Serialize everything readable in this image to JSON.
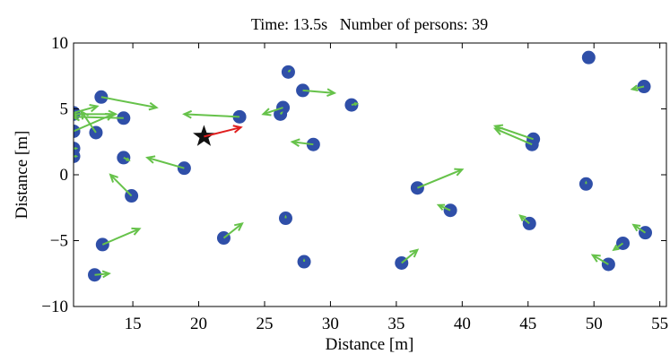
{
  "chart_data": {
    "type": "scatter",
    "title": "Time: 13.5s   Number of persons: 39",
    "xlabel": "Distance [m]",
    "ylabel": "Distance [m]",
    "xlim": [
      10.5,
      55.5
    ],
    "ylim": [
      -10,
      10
    ],
    "xticks": [
      15,
      20,
      25,
      30,
      35,
      40,
      45,
      50,
      55
    ],
    "yticks": [
      10,
      5,
      0,
      -5,
      -10
    ],
    "grid": false,
    "colors": {
      "person": "#2f4fa8",
      "velocity": "#66c24a",
      "robot": "#111111",
      "robot_velocity": "#e01e1e"
    },
    "robot": {
      "x": 20.4,
      "y": 2.9,
      "vx": 2.8,
      "vy": 0.7
    },
    "persons": [
      {
        "x": 10.5,
        "y": 4.7,
        "vx": 1.8,
        "vy": 0.5
      },
      {
        "x": 10.5,
        "y": 4.6,
        "vx": 3.2,
        "vy": 0.0
      },
      {
        "x": 10.5,
        "y": 3.3,
        "vx": 3.0,
        "vy": 1.3
      },
      {
        "x": 10.5,
        "y": 2.0,
        "vx": 0.2,
        "vy": 0.0
      },
      {
        "x": 10.5,
        "y": 1.4,
        "vx": 0.2,
        "vy": 0.0
      },
      {
        "x": 12.6,
        "y": 5.9,
        "vx": 4.2,
        "vy": -0.8
      },
      {
        "x": 14.3,
        "y": 4.3,
        "vx": -3.9,
        "vy": 0.1
      },
      {
        "x": 12.2,
        "y": 3.2,
        "vx": -1.1,
        "vy": 1.6
      },
      {
        "x": 14.3,
        "y": 1.3,
        "vx": 0.4,
        "vy": -0.2
      },
      {
        "x": 14.9,
        "y": -1.6,
        "vx": -1.6,
        "vy": 1.6
      },
      {
        "x": 18.9,
        "y": 0.5,
        "vx": -2.8,
        "vy": 0.8
      },
      {
        "x": 12.7,
        "y": -5.3,
        "vx": 2.8,
        "vy": 1.2
      },
      {
        "x": 12.1,
        "y": -7.6,
        "vx": 1.1,
        "vy": 0.1
      },
      {
        "x": 23.1,
        "y": 4.4,
        "vx": -4.2,
        "vy": 0.2
      },
      {
        "x": 26.8,
        "y": 7.8,
        "vx": 0.1,
        "vy": 0.1
      },
      {
        "x": 27.9,
        "y": 6.4,
        "vx": 2.4,
        "vy": -0.2
      },
      {
        "x": 26.4,
        "y": 5.1,
        "vx": -1.5,
        "vy": -0.5
      },
      {
        "x": 26.2,
        "y": 4.6,
        "vx": 0.1,
        "vy": 0.1
      },
      {
        "x": 28.7,
        "y": 2.3,
        "vx": -1.6,
        "vy": 0.2
      },
      {
        "x": 31.6,
        "y": 5.3,
        "vx": 0.4,
        "vy": 0.1
      },
      {
        "x": 21.9,
        "y": -4.8,
        "vx": 1.4,
        "vy": 1.1
      },
      {
        "x": 26.6,
        "y": -3.3,
        "vx": 0.0,
        "vy": 0.1
      },
      {
        "x": 28.0,
        "y": -6.6,
        "vx": 0.0,
        "vy": 0.1
      },
      {
        "x": 35.4,
        "y": -6.7,
        "vx": 1.2,
        "vy": 1.0
      },
      {
        "x": 36.6,
        "y": -1.0,
        "vx": 3.4,
        "vy": 1.4
      },
      {
        "x": 39.1,
        "y": -2.7,
        "vx": -0.9,
        "vy": 0.4
      },
      {
        "x": 45.4,
        "y": 2.7,
        "vx": -2.9,
        "vy": 1.0
      },
      {
        "x": 45.3,
        "y": 2.3,
        "vx": -2.8,
        "vy": 1.2
      },
      {
        "x": 45.1,
        "y": -3.7,
        "vx": -0.7,
        "vy": 0.6
      },
      {
        "x": 49.6,
        "y": 8.9,
        "vx": 0.0,
        "vy": 0.0
      },
      {
        "x": 53.8,
        "y": 6.7,
        "vx": -0.9,
        "vy": -0.2
      },
      {
        "x": 49.4,
        "y": -0.7,
        "vx": 0.0,
        "vy": 0.1
      },
      {
        "x": 53.9,
        "y": -4.4,
        "vx": -0.9,
        "vy": 0.6
      },
      {
        "x": 52.2,
        "y": -5.2,
        "vx": -0.7,
        "vy": -0.5
      },
      {
        "x": 51.1,
        "y": -6.8,
        "vx": -1.2,
        "vy": 0.7
      }
    ]
  }
}
